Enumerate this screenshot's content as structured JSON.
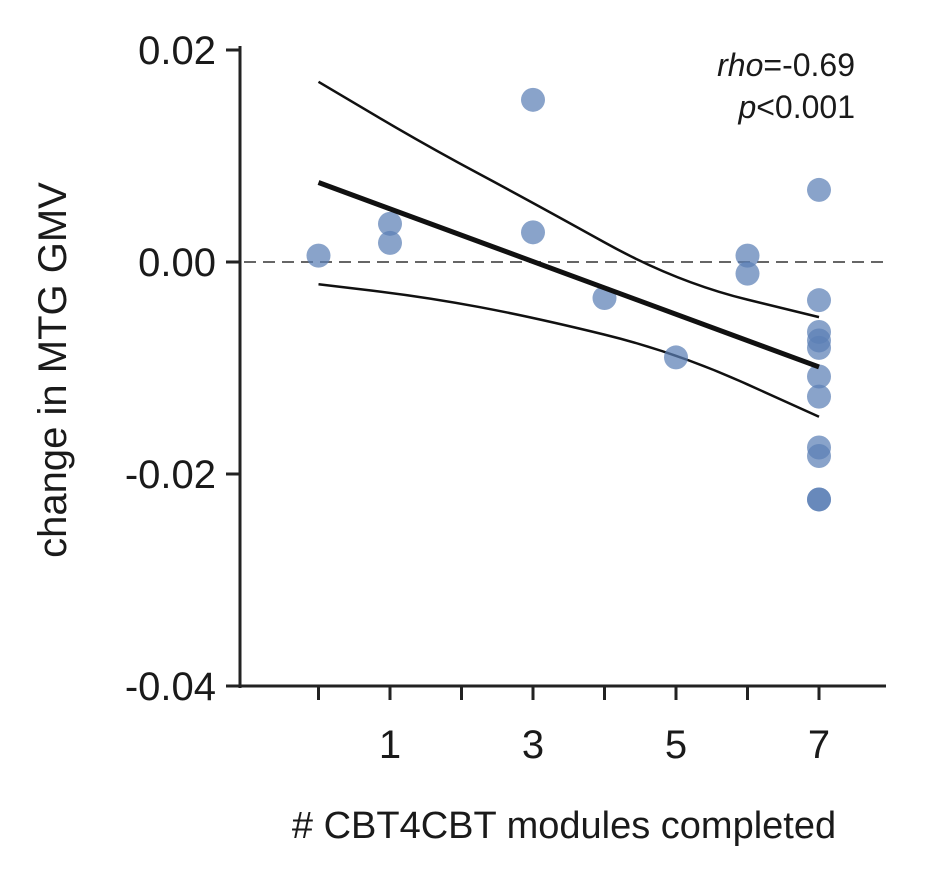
{
  "chart_data": {
    "type": "scatter",
    "xlabel": "# CBT4CBT modules completed",
    "ylabel": "change in MTG GMV",
    "xlim": [
      -1.1,
      7.9
    ],
    "ylim": [
      -0.04,
      0.02
    ],
    "x_ticks": [
      0,
      1,
      2,
      3,
      4,
      5,
      6,
      7
    ],
    "x_tick_labels": [
      "",
      "1",
      "",
      "3",
      "",
      "5",
      "",
      "7"
    ],
    "y_ticks": [
      0.02,
      0.0,
      -0.02,
      -0.04
    ],
    "y_tick_labels": [
      "0.02",
      "0.00",
      "-0.02",
      "-0.04"
    ],
    "reference_line_y": 0,
    "grid": false,
    "point_color": "#5b7fb5",
    "points": [
      {
        "x": 0,
        "y": 0.0006
      },
      {
        "x": 1,
        "y": 0.0036
      },
      {
        "x": 1,
        "y": 0.0018
      },
      {
        "x": 3,
        "y": 0.0153
      },
      {
        "x": 3,
        "y": 0.0028
      },
      {
        "x": 4,
        "y": -0.0034
      },
      {
        "x": 5,
        "y": -0.009
      },
      {
        "x": 6,
        "y": 0.0006
      },
      {
        "x": 6,
        "y": -0.0011
      },
      {
        "x": 7,
        "y": 0.0068
      },
      {
        "x": 7,
        "y": -0.0036
      },
      {
        "x": 7,
        "y": -0.0066
      },
      {
        "x": 7,
        "y": -0.0074
      },
      {
        "x": 7,
        "y": -0.0081
      },
      {
        "x": 7,
        "y": -0.0108
      },
      {
        "x": 7,
        "y": -0.0127
      },
      {
        "x": 7,
        "y": -0.0175
      },
      {
        "x": 7,
        "y": -0.0183
      },
      {
        "x": 7,
        "y": -0.0224
      },
      {
        "x": 7,
        "y": -0.0224
      }
    ],
    "fit_line": [
      {
        "x": 0,
        "y": 0.0075
      },
      {
        "x": 7,
        "y": -0.0099
      }
    ],
    "ci_upper": [
      {
        "x": 0,
        "y": 0.017
      },
      {
        "x": 1.5,
        "y": 0.011
      },
      {
        "x": 3,
        "y": 0.0056
      },
      {
        "x": 5,
        "y": -0.0019
      },
      {
        "x": 7,
        "y": -0.0052
      }
    ],
    "ci_lower": [
      {
        "x": 0,
        "y": -0.0021
      },
      {
        "x": 1.5,
        "y": -0.0033
      },
      {
        "x": 3,
        "y": -0.0052
      },
      {
        "x": 5,
        "y": -0.0085
      },
      {
        "x": 7,
        "y": -0.0146
      }
    ],
    "annotation": {
      "rho_label": "rho",
      "rho_value": "=-0.69",
      "p_label": "p",
      "p_value": "<0.001"
    }
  }
}
